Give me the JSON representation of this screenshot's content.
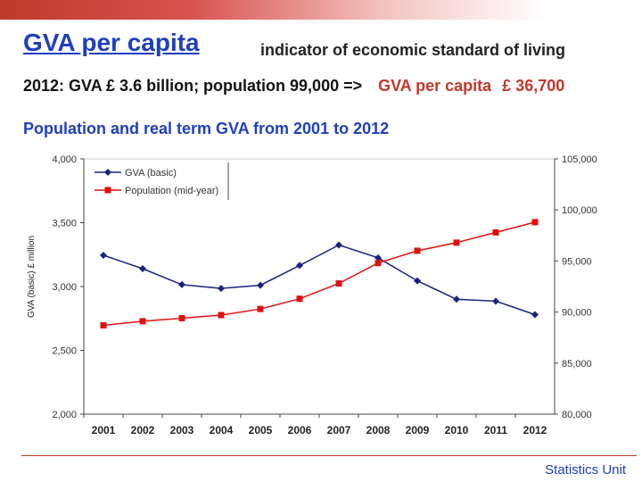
{
  "header": {
    "title": "GVA per capita",
    "subtitle": "indicator of economic standard of living",
    "summary_left": "2012: GVA £ 3.6 billion; population 99,000 =>",
    "summary_red_label": "GVA per capita",
    "summary_red_value": "£ 36,700",
    "chart_heading": "Population and real term GVA from 2001 to 2012"
  },
  "footer": {
    "label": "Statistics Unit"
  },
  "colors": {
    "gva": "#1a237e",
    "population": "#e01010",
    "title": "#1f3fbf",
    "accent": "#c0392b"
  },
  "chart_data": {
    "type": "line",
    "categories": [
      "2001",
      "2002",
      "2003",
      "2004",
      "2005",
      "2006",
      "2007",
      "2008",
      "2009",
      "2010",
      "2011",
      "2012"
    ],
    "series": [
      {
        "name": "GVA (basic)",
        "axis": "left",
        "marker": "diamond",
        "values": [
          3245,
          3140,
          3015,
          2985,
          3010,
          3165,
          3325,
          3225,
          3045,
          2900,
          2885,
          2780
        ]
      },
      {
        "name": "Population (mid-year)",
        "axis": "right",
        "marker": "square",
        "values": [
          88700,
          89100,
          89400,
          89700,
          90300,
          91300,
          92800,
          94800,
          96000,
          96800,
          97800,
          98800
        ]
      }
    ],
    "ylabel": "GVA (basic) £ million",
    "ylim_left": [
      2000,
      4000
    ],
    "ylim_right": [
      80000,
      105000
    ],
    "left_ticks": [
      "2,000",
      "2,500",
      "3,000",
      "3,500",
      "4,000"
    ],
    "right_ticks": [
      "80,000",
      "85,000",
      "90,000",
      "95,000",
      "100,000",
      "105,000"
    ],
    "legend_position": "top-left",
    "legend": [
      "GVA (basic)",
      "Population (mid-year)"
    ]
  }
}
